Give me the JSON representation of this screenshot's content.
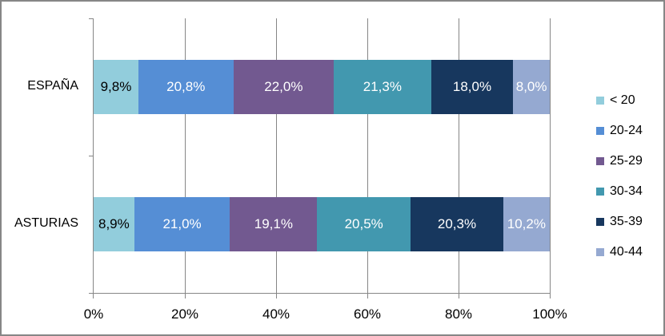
{
  "chart_data": {
    "type": "bar",
    "orientation": "horizontal",
    "stacked": "percent",
    "title": "",
    "xlabel": "",
    "ylabel": "",
    "categories": [
      "ESPAÑA",
      "ASTURIAS"
    ],
    "x_ticks": [
      "0%",
      "20%",
      "40%",
      "60%",
      "80%",
      "100%"
    ],
    "xlim": [
      0,
      100
    ],
    "grid": true,
    "legend_position": "right",
    "series": [
      {
        "name": "< 20",
        "color": "#92CDDC",
        "values": [
          9.8,
          8.9
        ],
        "labels": [
          "9,8%",
          "8,9%"
        ],
        "label_color": "#000000"
      },
      {
        "name": "20-24",
        "color": "#558ED5",
        "values": [
          20.8,
          21.0
        ],
        "labels": [
          "20,8%",
          "21,0%"
        ],
        "label_color": "#FFFFFF"
      },
      {
        "name": "25-29",
        "color": "#725990",
        "values": [
          22.0,
          19.1
        ],
        "labels": [
          "22,0%",
          "19,1%"
        ],
        "label_color": "#FFFFFF"
      },
      {
        "name": "30-34",
        "color": "#4298AF",
        "values": [
          21.3,
          20.5
        ],
        "labels": [
          "21,3%",
          "20,5%"
        ],
        "label_color": "#FFFFFF"
      },
      {
        "name": "35-39",
        "color": "#17375E",
        "values": [
          18.0,
          20.3
        ],
        "labels": [
          "18,0%",
          "20,3%"
        ],
        "label_color": "#FFFFFF"
      },
      {
        "name": "40-44",
        "color": "#95A9D1",
        "values": [
          8.0,
          10.2
        ],
        "labels": [
          "8,0%",
          "10,2%"
        ],
        "label_color": "#FFFFFF"
      }
    ]
  }
}
